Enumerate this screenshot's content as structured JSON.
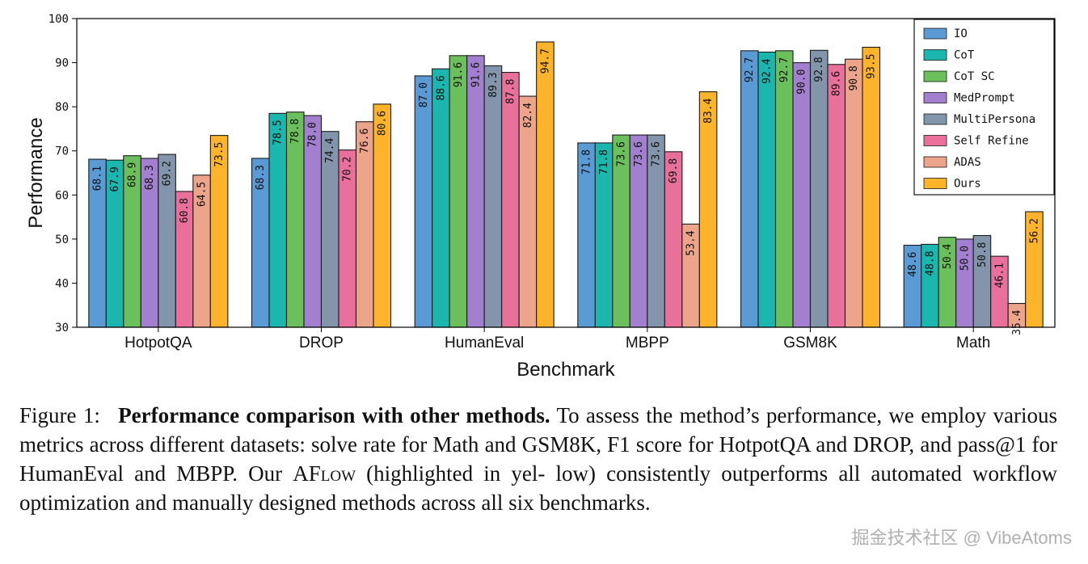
{
  "chart_data": {
    "type": "bar",
    "xlabel": "Benchmark",
    "ylabel": "Performance",
    "ylim": [
      30,
      100
    ],
    "yticks": [
      "30",
      "40",
      "50",
      "60",
      "70",
      "80",
      "90",
      "100"
    ],
    "categories": [
      "HotpotQA",
      "DROP",
      "HumanEval",
      "MBPP",
      "GSM8K",
      "Math"
    ],
    "legend_position": "top-right",
    "series": [
      {
        "name": "IO",
        "color": "#5b9bd5",
        "values": [
          68.1,
          68.3,
          87.0,
          71.8,
          92.7,
          48.6
        ]
      },
      {
        "name": "CoT",
        "color": "#1bb6ad",
        "values": [
          67.9,
          78.5,
          88.6,
          71.8,
          92.4,
          48.8
        ]
      },
      {
        "name": "CoT SC",
        "color": "#6cc05c",
        "values": [
          68.9,
          78.8,
          91.6,
          73.6,
          92.7,
          50.4
        ]
      },
      {
        "name": "MedPrompt",
        "color": "#a27fcf",
        "values": [
          68.3,
          78.0,
          91.6,
          73.6,
          90.0,
          50.0
        ]
      },
      {
        "name": "MultiPersona",
        "color": "#8395ab",
        "values": [
          69.2,
          74.4,
          89.3,
          73.6,
          92.8,
          50.8
        ]
      },
      {
        "name": "Self Refine",
        "color": "#e8709a",
        "values": [
          60.8,
          70.2,
          87.8,
          69.8,
          89.6,
          46.1
        ]
      },
      {
        "name": "ADAS",
        "color": "#eca48a",
        "values": [
          64.5,
          76.6,
          82.4,
          53.4,
          90.8,
          35.4
        ]
      },
      {
        "name": "Ours",
        "color": "#fdb42a",
        "values": [
          73.5,
          80.6,
          94.7,
          83.4,
          93.5,
          56.2
        ]
      }
    ]
  },
  "caption": {
    "figure_label": "Figure 1:",
    "bold_title": "Performance comparison with other methods.",
    "text_before_name": "To assess the method’s performance, we employ various metrics across different datasets: solve rate for Math and GSM8K, F1 score for HotpotQA and DROP, and pass@1 for HumanEval and MBPP. Our",
    "method_name": "AFlow",
    "text_after_name": "(highlighted in yel- low) consistently outperforms all automated workflow optimization and manually designed methods across all six benchmarks."
  },
  "watermark": "掘金技术社区 @ VibeAtoms"
}
